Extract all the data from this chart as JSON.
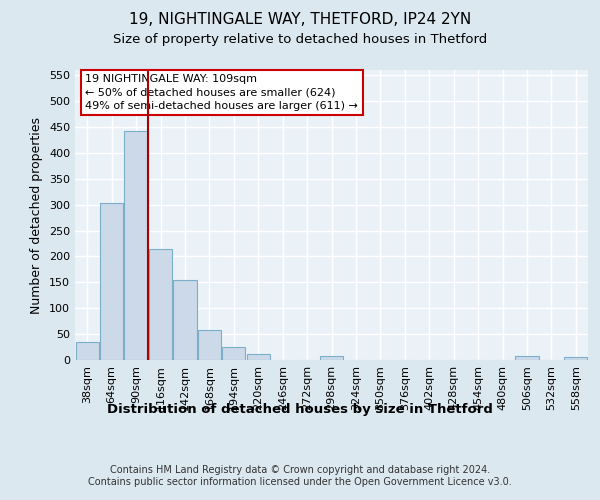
{
  "title1": "19, NIGHTINGALE WAY, THETFORD, IP24 2YN",
  "title2": "Size of property relative to detached houses in Thetford",
  "xlabel": "Distribution of detached houses by size in Thetford",
  "ylabel": "Number of detached properties",
  "footnote": "Contains HM Land Registry data © Crown copyright and database right 2024.\nContains public sector information licensed under the Open Government Licence v3.0.",
  "bin_labels": [
    "38sqm",
    "64sqm",
    "90sqm",
    "116sqm",
    "142sqm",
    "168sqm",
    "194sqm",
    "220sqm",
    "246sqm",
    "272sqm",
    "298sqm",
    "324sqm",
    "350sqm",
    "376sqm",
    "402sqm",
    "428sqm",
    "454sqm",
    "480sqm",
    "506sqm",
    "532sqm",
    "558sqm"
  ],
  "bar_heights": [
    35,
    303,
    443,
    215,
    155,
    57,
    25,
    12,
    0,
    0,
    8,
    0,
    0,
    0,
    0,
    0,
    0,
    0,
    8,
    0,
    5
  ],
  "bar_color": "#ccd9e8",
  "bar_edge_color": "#7baec8",
  "bar_linewidth": 0.8,
  "vline_x_index": 3,
  "vline_color": "#aa0000",
  "vline_linewidth": 1.5,
  "annotation_text": "19 NIGHTINGALE WAY: 109sqm\n← 50% of detached houses are smaller (624)\n49% of semi-detached houses are larger (611) →",
  "annotation_box_color": "#ffffff",
  "annotation_border_color": "#cc0000",
  "ylim": [
    0,
    560
  ],
  "yticks": [
    0,
    50,
    100,
    150,
    200,
    250,
    300,
    350,
    400,
    450,
    500,
    550
  ],
  "bg_color": "#dce8f0",
  "plot_bg_color": "#eaf2f8",
  "grid_color": "#ffffff",
  "title1_fontsize": 11,
  "title2_fontsize": 9.5,
  "xlabel_fontsize": 9.5,
  "ylabel_fontsize": 9,
  "footnote_fontsize": 7,
  "tick_fontsize": 8,
  "annotation_fontsize": 8
}
